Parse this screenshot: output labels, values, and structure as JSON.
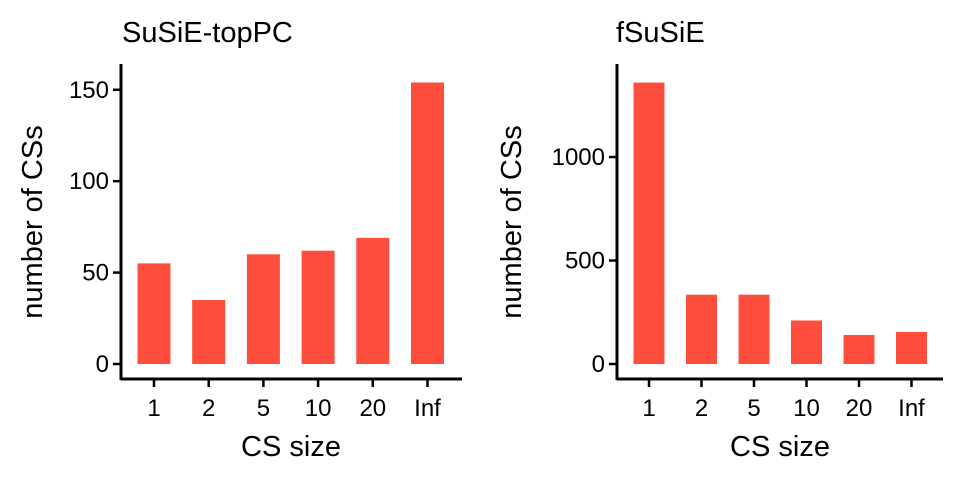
{
  "figure": {
    "bar_color": "#FF4D3D",
    "axis_color": "#000000",
    "background": "#FFFFFF"
  },
  "chart_data": [
    {
      "type": "bar",
      "title": "SuSiE-topPC",
      "xlabel": "CS size",
      "ylabel": "number of CSs",
      "categories": [
        "1",
        "2",
        "5",
        "10",
        "20",
        "Inf"
      ],
      "values": [
        55,
        35,
        60,
        62,
        69,
        154
      ],
      "ylim": [
        0,
        163
      ],
      "yticks": [
        0,
        50,
        100,
        150
      ],
      "grid": false,
      "legend": "none"
    },
    {
      "type": "bar",
      "title": "fSuSiE",
      "xlabel": "CS size",
      "ylabel": "number of CSs",
      "categories": [
        "1",
        "2",
        "5",
        "10",
        "20",
        "Inf"
      ],
      "values": [
        1360,
        335,
        335,
        210,
        140,
        155
      ],
      "ylim": [
        0,
        1440
      ],
      "yticks": [
        0,
        500,
        1000
      ],
      "grid": false,
      "legend": "none"
    }
  ]
}
